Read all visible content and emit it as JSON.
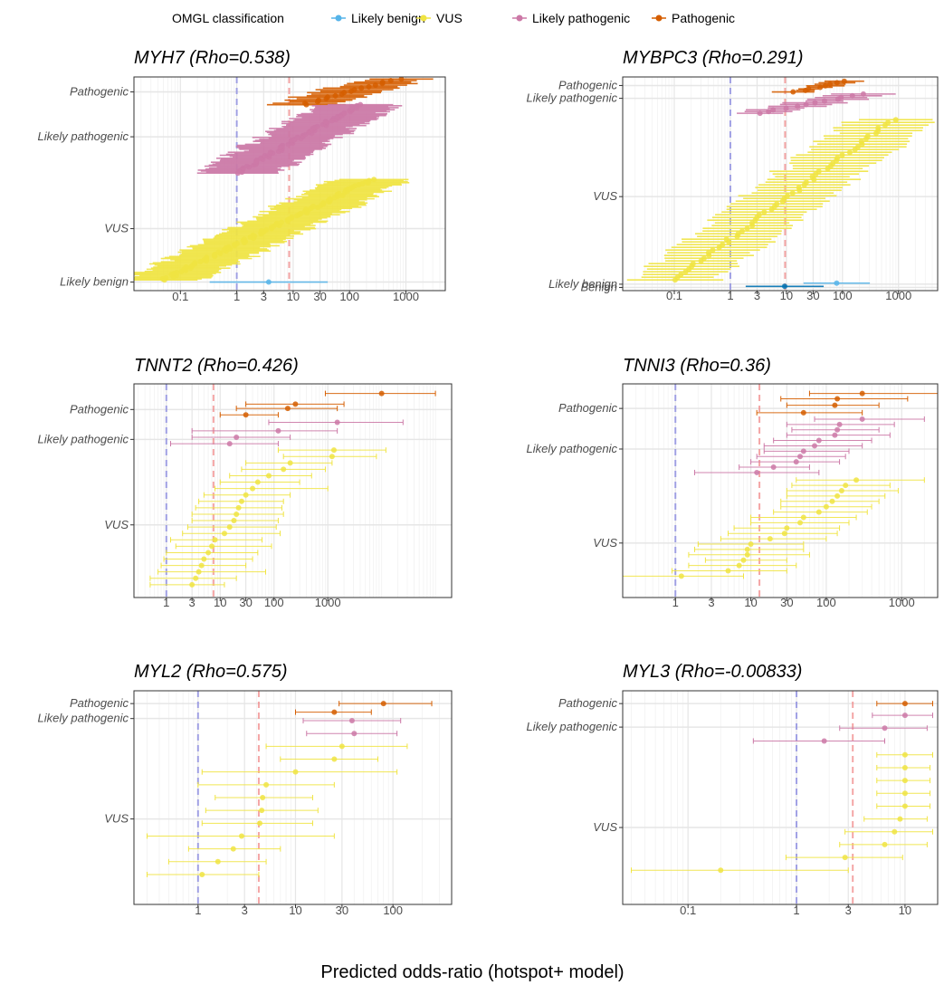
{
  "legend": {
    "title": "OMGL classification",
    "items": [
      {
        "label": "Likely benign",
        "color": "#56B4E9"
      },
      {
        "label": "VUS",
        "color": "#F0E442"
      },
      {
        "label": "Likely pathogenic",
        "color": "#CC79A7"
      },
      {
        "label": "Pathogenic",
        "color": "#D55E00"
      }
    ]
  },
  "x_axis_title": "Predicted odds-ratio (hotspot+ model)",
  "chart_data": [
    {
      "type": "scatter",
      "title": "MYH7 (Rho=0.538)",
      "x_scale": "log10",
      "x_ticks": [
        "0.1",
        "1",
        "3",
        "10",
        "30",
        "100",
        "1000"
      ],
      "x_tick_values": [
        0.1,
        1,
        3,
        10,
        30,
        100,
        1000
      ],
      "xlim": [
        0.015,
        5000
      ],
      "y_categories": [
        {
          "label": "Pathogenic",
          "rank": 0.93
        },
        {
          "label": "Likely pathogenic",
          "rank": 0.72
        },
        {
          "label": "VUS",
          "rank": 0.29
        },
        {
          "label": "Likely benign",
          "rank": 0.04
        }
      ],
      "ref_lines": {
        "blue": 1,
        "pink": 8.5
      },
      "groups": [
        {
          "class": "Pathogenic",
          "n": 18,
          "center_range": [
            15,
            700
          ],
          "ci_multiplier": 4,
          "rank_span": [
            0.87,
            0.99
          ]
        },
        {
          "class": "Likely pathogenic",
          "n": 70,
          "center_range": [
            1,
            150
          ],
          "ci_multiplier": 5,
          "rank_span": [
            0.55,
            0.87
          ]
        },
        {
          "class": "VUS",
          "n": 95,
          "center_range": [
            0.05,
            250
          ],
          "ci_multiplier": 5,
          "rank_span": [
            0.05,
            0.52
          ]
        },
        {
          "class": "Likely benign",
          "n": 1,
          "center_range": [
            3.6,
            3.6
          ],
          "ci_multiplier": 12,
          "rank_span": [
            0.04,
            0.04
          ]
        }
      ]
    },
    {
      "type": "scatter",
      "title": "MYBPC3 (Rho=0.291)",
      "x_scale": "log10",
      "x_ticks": [
        "0.1",
        "1",
        "3",
        "10",
        "30",
        "100",
        "1000"
      ],
      "x_tick_values": [
        0.1,
        1,
        3,
        10,
        30,
        100,
        1000
      ],
      "xlim": [
        0.012,
        5000
      ],
      "y_categories": [
        {
          "label": "Pathogenic",
          "rank": 0.96
        },
        {
          "label": "Likely pathogenic",
          "rank": 0.9
        },
        {
          "label": "VUS",
          "rank": 0.44
        },
        {
          "label": "Likely benign",
          "rank": 0.03
        },
        {
          "label": "Benign",
          "rank": 0.015
        }
      ],
      "ref_lines": {
        "blue": 1,
        "pink": 9.5
      },
      "groups": [
        {
          "class": "Pathogenic",
          "n": 8,
          "center_range": [
            15,
            120
          ],
          "ci_multiplier": 2,
          "rank_span": [
            0.93,
            0.98
          ]
        },
        {
          "class": "Likely pathogenic",
          "n": 12,
          "center_range": [
            3,
            250
          ],
          "ci_multiplier": 3,
          "rank_span": [
            0.83,
            0.92
          ]
        },
        {
          "class": "VUS",
          "n": 60,
          "center_range": [
            0.1,
            800
          ],
          "ci_multiplier": 6,
          "rank_span": [
            0.05,
            0.8
          ]
        },
        {
          "class": "Likely benign",
          "n": 1,
          "center_range": [
            70,
            70
          ],
          "ci_multiplier": 4,
          "rank_span": [
            0.035,
            0.035
          ]
        },
        {
          "class": "Benign",
          "n": 1,
          "center_range": [
            10,
            10
          ],
          "ci_multiplier": 6,
          "rank_span": [
            0.02,
            0.02
          ]
        }
      ]
    },
    {
      "type": "scatter",
      "title": "TNNT2 (Rho=0.426)",
      "x_scale": "log10",
      "x_ticks": [
        "1",
        "3",
        "10",
        "30",
        "100",
        "1000"
      ],
      "x_tick_values": [
        1,
        3,
        10,
        30,
        100,
        1000
      ],
      "xlim": [
        0.25,
        200000
      ],
      "y_categories": [
        {
          "label": "Pathogenic",
          "rank": 0.88
        },
        {
          "label": "Likely pathogenic",
          "rank": 0.74
        },
        {
          "label": "VUS",
          "rank": 0.34
        }
      ],
      "points": [
        {
          "class": "Pathogenic",
          "x": 10000,
          "lo": 900,
          "hi": 100000,
          "rank": 0.955
        },
        {
          "class": "Pathogenic",
          "x": 250,
          "lo": 30,
          "hi": 2000,
          "rank": 0.905
        },
        {
          "class": "Pathogenic",
          "x": 180,
          "lo": 20,
          "hi": 1500,
          "rank": 0.885
        },
        {
          "class": "Pathogenic",
          "x": 30,
          "lo": 10,
          "hi": 120,
          "rank": 0.855
        },
        {
          "class": "Likely pathogenic",
          "x": 1500,
          "lo": 80,
          "hi": 25000,
          "rank": 0.82
        },
        {
          "class": "Likely pathogenic",
          "x": 120,
          "lo": 3,
          "hi": 1500,
          "rank": 0.78
        },
        {
          "class": "Likely pathogenic",
          "x": 20,
          "lo": 3,
          "hi": 200,
          "rank": 0.75
        },
        {
          "class": "Likely pathogenic",
          "x": 15,
          "lo": 1.2,
          "hi": 120,
          "rank": 0.72
        },
        {
          "class": "VUS",
          "x": 1300,
          "lo": 120,
          "hi": 12000,
          "rank": 0.69
        },
        {
          "class": "VUS",
          "x": 1200,
          "lo": 150,
          "hi": 8000,
          "rank": 0.66
        },
        {
          "class": "VUS",
          "x": 200,
          "lo": 30,
          "hi": 1200,
          "rank": 0.63
        },
        {
          "class": "VUS",
          "x": 150,
          "lo": 25,
          "hi": 900,
          "rank": 0.6
        },
        {
          "class": "VUS",
          "x": 80,
          "lo": 15,
          "hi": 500,
          "rank": 0.57
        },
        {
          "class": "VUS",
          "x": 50,
          "lo": 10,
          "hi": 300,
          "rank": 0.54
        },
        {
          "class": "VUS",
          "x": 40,
          "lo": 8,
          "hi": 1000,
          "rank": 0.51
        },
        {
          "class": "VUS",
          "x": 30,
          "lo": 5,
          "hi": 200,
          "rank": 0.48
        },
        {
          "class": "VUS",
          "x": 25,
          "lo": 4,
          "hi": 150,
          "rank": 0.45
        },
        {
          "class": "VUS",
          "x": 22,
          "lo": 3.5,
          "hi": 140,
          "rank": 0.42
        },
        {
          "class": "VUS",
          "x": 20,
          "lo": 3,
          "hi": 150,
          "rank": 0.39
        },
        {
          "class": "VUS",
          "x": 18,
          "lo": 3,
          "hi": 120,
          "rank": 0.36
        },
        {
          "class": "VUS",
          "x": 15,
          "lo": 2.5,
          "hi": 110,
          "rank": 0.33
        },
        {
          "class": "VUS",
          "x": 12,
          "lo": 2,
          "hi": 130,
          "rank": 0.3
        },
        {
          "class": "VUS",
          "x": 8,
          "lo": 1.2,
          "hi": 60,
          "rank": 0.27
        },
        {
          "class": "VUS",
          "x": 7,
          "lo": 1.5,
          "hi": 90,
          "rank": 0.24
        },
        {
          "class": "VUS",
          "x": 6,
          "lo": 1,
          "hi": 50,
          "rank": 0.21
        },
        {
          "class": "VUS",
          "x": 5,
          "lo": 0.9,
          "hi": 40,
          "rank": 0.18
        },
        {
          "class": "VUS",
          "x": 4.5,
          "lo": 0.8,
          "hi": 30,
          "rank": 0.15
        },
        {
          "class": "VUS",
          "x": 4,
          "lo": 0.7,
          "hi": 70,
          "rank": 0.12
        },
        {
          "class": "VUS",
          "x": 3.5,
          "lo": 0.5,
          "hi": 20,
          "rank": 0.09
        },
        {
          "class": "VUS",
          "x": 3,
          "lo": 0.5,
          "hi": 12,
          "rank": 0.06
        }
      ],
      "ref_lines": {
        "blue": 1,
        "pink": 7.5
      }
    },
    {
      "type": "scatter",
      "title": "TNNI3 (Rho=0.36)",
      "x_scale": "log10",
      "x_ticks": [
        "1",
        "3",
        "10",
        "30",
        "100",
        "1000"
      ],
      "x_tick_values": [
        1,
        3,
        10,
        30,
        100,
        1000
      ],
      "xlim": [
        0.2,
        3000
      ],
      "y_categories": [
        {
          "label": "Pathogenic",
          "rank": 0.885
        },
        {
          "label": "Likely pathogenic",
          "rank": 0.695
        },
        {
          "label": "VUS",
          "rank": 0.255
        }
      ],
      "points": [
        {
          "class": "Pathogenic",
          "x": 300,
          "lo": 60,
          "hi": 3000,
          "rank": 0.955
        },
        {
          "class": "Pathogenic",
          "x": 140,
          "lo": 25,
          "hi": 1200,
          "rank": 0.93
        },
        {
          "class": "Pathogenic",
          "x": 130,
          "lo": 30,
          "hi": 500,
          "rank": 0.9
        },
        {
          "class": "Pathogenic",
          "x": 50,
          "lo": 12,
          "hi": 300,
          "rank": 0.865
        },
        {
          "class": "Likely pathogenic",
          "x": 300,
          "lo": 70,
          "hi": 2000,
          "rank": 0.835
        },
        {
          "class": "Likely pathogenic",
          "x": 150,
          "lo": 30,
          "hi": 800,
          "rank": 0.81
        },
        {
          "class": "Likely pathogenic",
          "x": 140,
          "lo": 35,
          "hi": 500,
          "rank": 0.785
        },
        {
          "class": "Likely pathogenic",
          "x": 130,
          "lo": 30,
          "hi": 700,
          "rank": 0.76
        },
        {
          "class": "Likely pathogenic",
          "x": 80,
          "lo": 20,
          "hi": 400,
          "rank": 0.735
        },
        {
          "class": "Likely pathogenic",
          "x": 70,
          "lo": 15,
          "hi": 300,
          "rank": 0.71
        },
        {
          "class": "Likely pathogenic",
          "x": 50,
          "lo": 15,
          "hi": 200,
          "rank": 0.685
        },
        {
          "class": "Likely pathogenic",
          "x": 45,
          "lo": 12,
          "hi": 180,
          "rank": 0.66
        },
        {
          "class": "Likely pathogenic",
          "x": 40,
          "lo": 10,
          "hi": 150,
          "rank": 0.635
        },
        {
          "class": "Likely pathogenic",
          "x": 20,
          "lo": 7,
          "hi": 60,
          "rank": 0.61
        },
        {
          "class": "Likely pathogenic",
          "x": 12,
          "lo": 1.8,
          "hi": 80,
          "rank": 0.585
        },
        {
          "class": "VUS",
          "x": 250,
          "lo": 40,
          "hi": 2000,
          "rank": 0.55
        },
        {
          "class": "VUS",
          "x": 180,
          "lo": 35,
          "hi": 700,
          "rank": 0.525
        },
        {
          "class": "VUS",
          "x": 160,
          "lo": 30,
          "hi": 900,
          "rank": 0.5
        },
        {
          "class": "VUS",
          "x": 140,
          "lo": 30,
          "hi": 600,
          "rank": 0.475
        },
        {
          "class": "VUS",
          "x": 120,
          "lo": 25,
          "hi": 500,
          "rank": 0.45
        },
        {
          "class": "VUS",
          "x": 100,
          "lo": 25,
          "hi": 400,
          "rank": 0.425
        },
        {
          "class": "VUS",
          "x": 80,
          "lo": 20,
          "hi": 350,
          "rank": 0.4
        },
        {
          "class": "VUS",
          "x": 50,
          "lo": 10,
          "hi": 250,
          "rank": 0.375
        },
        {
          "class": "VUS",
          "x": 45,
          "lo": 10,
          "hi": 200,
          "rank": 0.35
        },
        {
          "class": "VUS",
          "x": 30,
          "lo": 6,
          "hi": 150,
          "rank": 0.325
        },
        {
          "class": "VUS",
          "x": 28,
          "lo": 5,
          "hi": 140,
          "rank": 0.3
        },
        {
          "class": "VUS",
          "x": 18,
          "lo": 4,
          "hi": 100,
          "rank": 0.275
        },
        {
          "class": "VUS",
          "x": 10,
          "lo": 2,
          "hi": 50,
          "rank": 0.25
        },
        {
          "class": "VUS",
          "x": 9,
          "lo": 1.8,
          "hi": 50,
          "rank": 0.225
        },
        {
          "class": "VUS",
          "x": 9,
          "lo": 1.5,
          "hi": 60,
          "rank": 0.2
        },
        {
          "class": "VUS",
          "x": 8,
          "lo": 2.5,
          "hi": 30,
          "rank": 0.175
        },
        {
          "class": "VUS",
          "x": 7,
          "lo": 1.5,
          "hi": 40,
          "rank": 0.15
        },
        {
          "class": "VUS",
          "x": 5,
          "lo": 0.9,
          "hi": 30,
          "rank": 0.125
        },
        {
          "class": "VUS",
          "x": 1.2,
          "lo": 0.2,
          "hi": 8,
          "rank": 0.1
        }
      ],
      "ref_lines": {
        "blue": 1,
        "pink": 13
      }
    },
    {
      "type": "scatter",
      "title": "MYL2 (Rho=0.575)",
      "x_scale": "log10",
      "x_ticks": [
        "1",
        "3",
        "10",
        "30",
        "100"
      ],
      "x_tick_values": [
        1,
        3,
        10,
        30,
        100
      ],
      "xlim": [
        0.22,
        400
      ],
      "y_categories": [
        {
          "label": "Pathogenic",
          "rank": 0.94
        },
        {
          "label": "Likely pathogenic",
          "rank": 0.87
        },
        {
          "label": "VUS",
          "rank": 0.4
        }
      ],
      "points": [
        {
          "class": "Pathogenic",
          "x": 80,
          "lo": 28,
          "hi": 250,
          "rank": 0.94
        },
        {
          "class": "Pathogenic",
          "x": 25,
          "lo": 10,
          "hi": 60,
          "rank": 0.9
        },
        {
          "class": "Likely pathogenic",
          "x": 38,
          "lo": 12,
          "hi": 120,
          "rank": 0.86
        },
        {
          "class": "Likely pathogenic",
          "x": 40,
          "lo": 13,
          "hi": 110,
          "rank": 0.8
        },
        {
          "class": "VUS",
          "x": 30,
          "lo": 5,
          "hi": 140,
          "rank": 0.74
        },
        {
          "class": "VUS",
          "x": 25,
          "lo": 7,
          "hi": 70,
          "rank": 0.68
        },
        {
          "class": "VUS",
          "x": 10,
          "lo": 1.1,
          "hi": 110,
          "rank": 0.62
        },
        {
          "class": "VUS",
          "x": 5,
          "lo": 1,
          "hi": 25,
          "rank": 0.56
        },
        {
          "class": "VUS",
          "x": 4.6,
          "lo": 1.5,
          "hi": 15,
          "rank": 0.5
        },
        {
          "class": "VUS",
          "x": 4.5,
          "lo": 1.2,
          "hi": 17,
          "rank": 0.44
        },
        {
          "class": "VUS",
          "x": 4.3,
          "lo": 1.1,
          "hi": 15,
          "rank": 0.38
        },
        {
          "class": "VUS",
          "x": 2.8,
          "lo": 0.3,
          "hi": 25,
          "rank": 0.32
        },
        {
          "class": "VUS",
          "x": 2.3,
          "lo": 0.8,
          "hi": 7,
          "rank": 0.26
        },
        {
          "class": "VUS",
          "x": 1.6,
          "lo": 0.5,
          "hi": 5,
          "rank": 0.2
        },
        {
          "class": "VUS",
          "x": 1.1,
          "lo": 0.3,
          "hi": 4.2,
          "rank": 0.14
        }
      ],
      "ref_lines": {
        "blue": 1,
        "pink": 4.2
      }
    },
    {
      "type": "scatter",
      "title": "MYL3 (Rho=-0.00833)",
      "x_scale": "log10",
      "x_ticks": [
        "0.1",
        "1",
        "3",
        "10"
      ],
      "x_tick_values": [
        0.1,
        1,
        3,
        10
      ],
      "xlim": [
        0.025,
        20
      ],
      "y_categories": [
        {
          "label": "Pathogenic",
          "rank": 0.94
        },
        {
          "label": "Likely pathogenic",
          "rank": 0.83
        },
        {
          "label": "VUS",
          "rank": 0.36
        }
      ],
      "points": [
        {
          "class": "Pathogenic",
          "x": 10,
          "lo": 5.5,
          "hi": 18,
          "rank": 0.94
        },
        {
          "class": "Likely pathogenic",
          "x": 10,
          "lo": 5,
          "hi": 18,
          "rank": 0.885
        },
        {
          "class": "Likely pathogenic",
          "x": 6.5,
          "lo": 2.5,
          "hi": 16,
          "rank": 0.825
        },
        {
          "class": "Likely pathogenic",
          "x": 1.8,
          "lo": 0.4,
          "hi": 6.5,
          "rank": 0.765
        },
        {
          "class": "VUS",
          "x": 10,
          "lo": 5.5,
          "hi": 18,
          "rank": 0.7
        },
        {
          "class": "VUS",
          "x": 10,
          "lo": 5.5,
          "hi": 17,
          "rank": 0.64
        },
        {
          "class": "VUS",
          "x": 10,
          "lo": 5.5,
          "hi": 17,
          "rank": 0.58
        },
        {
          "class": "VUS",
          "x": 10,
          "lo": 5.5,
          "hi": 17,
          "rank": 0.52
        },
        {
          "class": "VUS",
          "x": 10,
          "lo": 5.5,
          "hi": 17,
          "rank": 0.46
        },
        {
          "class": "VUS",
          "x": 9,
          "lo": 4.2,
          "hi": 16,
          "rank": 0.4
        },
        {
          "class": "VUS",
          "x": 8,
          "lo": 2.8,
          "hi": 18,
          "rank": 0.34
        },
        {
          "class": "VUS",
          "x": 6.5,
          "lo": 2.5,
          "hi": 16,
          "rank": 0.28
        },
        {
          "class": "VUS",
          "x": 2.8,
          "lo": 0.8,
          "hi": 9.5,
          "rank": 0.22
        },
        {
          "class": "VUS",
          "x": 0.2,
          "lo": 0.03,
          "hi": 3,
          "rank": 0.16
        }
      ],
      "ref_lines": {
        "blue": 1,
        "pink": 3.3
      }
    }
  ]
}
